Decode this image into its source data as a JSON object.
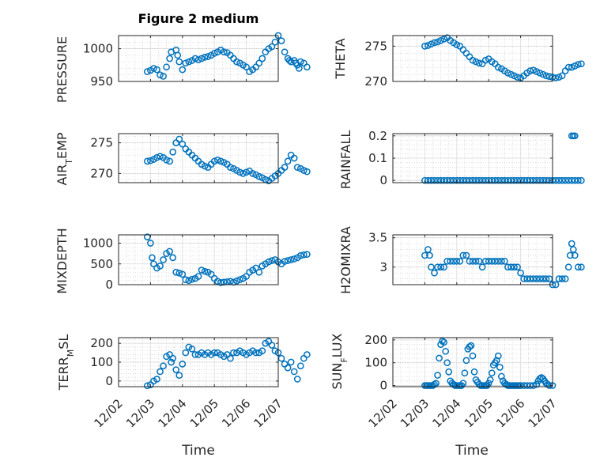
{
  "chart_data": [
    {
      "type": "scatter",
      "title": "Figure 2 medium",
      "ylabel": "PRESSURE",
      "ylim": [
        950,
        1020
      ],
      "yticks": [
        950,
        1000
      ],
      "yticklabels": [
        "950",
        "1000"
      ],
      "grid": true,
      "x": [
        0.9,
        1.0,
        1.1,
        1.2,
        1.3,
        1.4,
        1.5,
        1.6,
        1.65,
        1.8,
        1.85,
        1.9,
        2.0,
        2.1,
        2.2,
        2.3,
        2.4,
        2.5,
        2.6,
        2.7,
        2.8,
        2.9,
        3.0,
        3.1,
        3.2,
        3.3,
        3.4,
        3.5,
        3.6,
        3.7,
        3.8,
        3.9,
        4.0,
        4.1,
        4.2,
        4.3,
        4.4,
        4.5,
        4.6,
        4.7,
        4.8,
        4.9,
        5.0,
        5.1,
        5.2,
        5.3,
        5.35,
        5.4,
        5.5,
        5.55,
        5.6,
        5.65,
        5.7,
        5.8,
        5.9
      ],
      "values": [
        965,
        967,
        970,
        968,
        960,
        958,
        972,
        985,
        995,
        998,
        990,
        980,
        968,
        978,
        980,
        982,
        985,
        983,
        985,
        987,
        988,
        990,
        993,
        995,
        998,
        995,
        994,
        990,
        985,
        980,
        978,
        975,
        972,
        965,
        968,
        972,
        978,
        985,
        995,
        1000,
        1003,
        1010,
        1020,
        1012,
        995,
        985,
        982,
        980,
        982,
        978,
        975,
        970,
        980,
        978,
        972
      ]
    },
    {
      "type": "scatter",
      "title": "",
      "ylabel": "THETA",
      "ylim": [
        270,
        276.5
      ],
      "yticks": [
        270,
        275
      ],
      "yticklabels": [
        "270",
        "275"
      ],
      "grid": true,
      "x": [
        1.0,
        1.1,
        1.2,
        1.3,
        1.4,
        1.5,
        1.6,
        1.7,
        1.8,
        1.9,
        2.0,
        2.1,
        2.2,
        2.3,
        2.4,
        2.5,
        2.6,
        2.7,
        2.8,
        2.9,
        3.0,
        3.1,
        3.2,
        3.3,
        3.4,
        3.5,
        3.6,
        3.7,
        3.8,
        3.9,
        4.0,
        4.1,
        4.2,
        4.3,
        4.4,
        4.5,
        4.6,
        4.7,
        4.8,
        4.9,
        5.0,
        5.1,
        5.2,
        5.3,
        5.4,
        5.5,
        5.6,
        5.7,
        5.8,
        5.9
      ],
      "values": [
        275.0,
        275.1,
        275.3,
        275.5,
        275.6,
        275.8,
        276.0,
        276.2,
        275.8,
        275.5,
        275.2,
        275.0,
        274.5,
        274.0,
        273.5,
        273.0,
        272.8,
        272.6,
        272.5,
        273.0,
        273.2,
        272.8,
        272.5,
        272.0,
        271.8,
        271.5,
        271.2,
        271.0,
        270.8,
        270.6,
        270.5,
        270.8,
        271.2,
        271.5,
        271.6,
        271.4,
        271.2,
        271.0,
        270.8,
        270.7,
        270.6,
        270.5,
        270.6,
        270.8,
        271.5,
        272.0,
        272.0,
        272.2,
        272.4,
        272.5
      ]
    },
    {
      "type": "scatter",
      "title": "",
      "ylabel": "AIR_TEMP",
      "ylim": [
        268.5,
        276.5
      ],
      "yticks": [
        270,
        275
      ],
      "yticklabels": [
        "270",
        "275"
      ],
      "grid": true,
      "x": [
        0.9,
        1.0,
        1.1,
        1.2,
        1.3,
        1.4,
        1.5,
        1.6,
        1.7,
        1.8,
        1.9,
        2.0,
        2.1,
        2.2,
        2.3,
        2.4,
        2.5,
        2.6,
        2.7,
        2.8,
        2.9,
        3.0,
        3.1,
        3.2,
        3.3,
        3.4,
        3.5,
        3.6,
        3.7,
        3.8,
        3.9,
        4.0,
        4.1,
        4.2,
        4.3,
        4.4,
        4.5,
        4.6,
        4.7,
        4.8,
        4.9,
        5.0,
        5.1,
        5.2,
        5.3,
        5.4,
        5.5,
        5.6,
        5.7,
        5.8,
        5.9
      ],
      "values": [
        272.0,
        272.1,
        272.3,
        272.6,
        272.8,
        272.6,
        272.2,
        272.0,
        273.5,
        275.0,
        275.6,
        274.8,
        274.0,
        273.5,
        273.0,
        272.5,
        272.0,
        271.5,
        271.2,
        271.0,
        271.5,
        272.0,
        272.2,
        272.0,
        271.8,
        271.5,
        271.0,
        270.8,
        270.5,
        270.2,
        270.0,
        270.2,
        270.4,
        270.0,
        269.8,
        269.5,
        269.3,
        269.0,
        268.8,
        269.2,
        269.6,
        270.0,
        270.5,
        271.0,
        272.0,
        273.0,
        272.5,
        271.0,
        270.8,
        270.5,
        270.3
      ]
    },
    {
      "type": "scatter",
      "title": "",
      "ylabel": "RAINFALL",
      "ylim": [
        -0.01,
        0.21
      ],
      "yticks": [
        0,
        0.1,
        0.2
      ],
      "yticklabels": [
        "0",
        "0.1",
        "0.2"
      ],
      "grid": true,
      "x": [
        1.0,
        1.1,
        1.2,
        1.3,
        1.4,
        1.5,
        1.6,
        1.7,
        1.8,
        1.9,
        2.0,
        2.1,
        2.2,
        2.3,
        2.4,
        2.5,
        2.6,
        2.7,
        2.8,
        2.9,
        3.0,
        3.1,
        3.2,
        3.3,
        3.4,
        3.5,
        3.6,
        3.7,
        3.8,
        3.9,
        4.0,
        4.1,
        4.2,
        4.3,
        4.4,
        4.5,
        4.6,
        4.7,
        4.8,
        4.9,
        5.0,
        5.1,
        5.2,
        5.3,
        5.4,
        5.5,
        5.6,
        5.7,
        5.8,
        5.9,
        5.6,
        5.65,
        5.7
      ],
      "values": [
        0,
        0,
        0,
        0,
        0,
        0,
        0,
        0,
        0,
        0,
        0,
        0,
        0,
        0,
        0,
        0,
        0,
        0,
        0,
        0,
        0,
        0,
        0,
        0,
        0,
        0,
        0,
        0,
        0,
        0,
        0,
        0,
        0,
        0,
        0,
        0,
        0,
        0,
        0,
        0,
        0,
        0,
        0,
        0,
        0,
        0,
        0,
        0,
        0,
        0,
        0.2,
        0.2,
        0.2
      ]
    },
    {
      "type": "scatter",
      "title": "",
      "ylabel": "MIXDEPTH",
      "ylim": [
        0,
        1200
      ],
      "yticks": [
        0,
        500,
        1000
      ],
      "yticklabels": [
        "0",
        "500",
        "1000"
      ],
      "grid": true,
      "x": [
        0.9,
        1.0,
        1.05,
        1.1,
        1.2,
        1.3,
        1.4,
        1.5,
        1.6,
        1.7,
        1.8,
        1.9,
        2.0,
        2.1,
        2.2,
        2.3,
        2.4,
        2.5,
        2.6,
        2.7,
        2.8,
        2.9,
        3.0,
        3.1,
        3.2,
        3.3,
        3.4,
        3.5,
        3.6,
        3.7,
        3.8,
        3.9,
        4.0,
        4.1,
        4.2,
        4.3,
        4.4,
        4.5,
        4.6,
        4.7,
        4.8,
        4.9,
        5.0,
        5.1,
        5.2,
        5.3,
        5.4,
        5.5,
        5.6,
        5.7,
        5.8,
        5.9
      ],
      "values": [
        1150,
        1000,
        650,
        500,
        400,
        450,
        600,
        750,
        800,
        650,
        300,
        280,
        250,
        120,
        100,
        130,
        150,
        200,
        350,
        320,
        300,
        250,
        150,
        80,
        50,
        60,
        70,
        80,
        60,
        90,
        120,
        150,
        200,
        300,
        350,
        400,
        300,
        450,
        500,
        550,
        580,
        600,
        550,
        500,
        560,
        580,
        600,
        620,
        650,
        700,
        720,
        730
      ]
    },
    {
      "type": "scatter",
      "title": "",
      "ylabel": "H2OMIXRA",
      "ylim": [
        2.7,
        3.55
      ],
      "yticks": [
        3,
        3.5
      ],
      "yticklabels": [
        "3",
        "3.5"
      ],
      "grid": true,
      "x": [
        1.0,
        1.1,
        1.15,
        1.2,
        1.3,
        1.4,
        1.5,
        1.6,
        1.7,
        1.8,
        1.9,
        2.0,
        2.1,
        2.2,
        2.3,
        2.4,
        2.5,
        2.6,
        2.7,
        2.8,
        2.9,
        3.0,
        3.1,
        3.2,
        3.3,
        3.4,
        3.5,
        3.6,
        3.7,
        3.8,
        3.9,
        4.0,
        4.1,
        4.2,
        4.3,
        4.4,
        4.5,
        4.6,
        4.7,
        4.8,
        4.9,
        5.0,
        5.1,
        5.2,
        5.3,
        5.4,
        5.5,
        5.55,
        5.6,
        5.65,
        5.7,
        5.8,
        5.9
      ],
      "values": [
        3.2,
        3.3,
        3.2,
        3.0,
        2.9,
        3.0,
        3.0,
        3.0,
        3.1,
        3.1,
        3.1,
        3.1,
        3.1,
        3.2,
        3.2,
        3.1,
        3.1,
        3.1,
        3.1,
        3.0,
        3.1,
        3.1,
        3.1,
        3.1,
        3.1,
        3.1,
        3.1,
        3.0,
        3.0,
        3.0,
        3.0,
        2.9,
        2.8,
        2.8,
        2.8,
        2.8,
        2.8,
        2.8,
        2.8,
        2.8,
        2.8,
        2.7,
        2.7,
        2.8,
        2.8,
        2.8,
        3.0,
        3.2,
        3.4,
        3.3,
        3.2,
        3.0,
        3.0
      ]
    },
    {
      "type": "scatter",
      "title": "",
      "ylabel": "TERR_MSL",
      "ylim": [
        -30,
        230
      ],
      "yticks": [
        0,
        100,
        200
      ],
      "yticklabels": [
        "0",
        "100",
        "200"
      ],
      "grid": true,
      "xticklabels": [
        "12/02",
        "12/03",
        "12/04",
        "12/05",
        "12/06",
        "12/07"
      ],
      "xlabel": "Time",
      "x": [
        0.9,
        1.0,
        1.1,
        1.2,
        1.3,
        1.4,
        1.5,
        1.6,
        1.65,
        1.7,
        1.8,
        1.9,
        2.0,
        2.1,
        2.2,
        2.3,
        2.4,
        2.5,
        2.6,
        2.7,
        2.8,
        2.9,
        3.0,
        3.1,
        3.2,
        3.3,
        3.4,
        3.5,
        3.6,
        3.7,
        3.8,
        3.9,
        4.0,
        4.1,
        4.2,
        4.3,
        4.4,
        4.5,
        4.6,
        4.7,
        4.8,
        4.9,
        5.0,
        5.1,
        5.2,
        5.3,
        5.4,
        5.5,
        5.6,
        5.7,
        5.8,
        5.9
      ],
      "values": [
        -25,
        -20,
        0,
        10,
        50,
        80,
        130,
        140,
        100,
        120,
        60,
        30,
        90,
        150,
        180,
        170,
        140,
        140,
        150,
        140,
        150,
        140,
        150,
        150,
        140,
        130,
        140,
        120,
        150,
        150,
        160,
        150,
        140,
        150,
        160,
        150,
        150,
        160,
        200,
        210,
        190,
        160,
        150,
        120,
        90,
        70,
        100,
        50,
        10,
        80,
        120,
        140
      ]
    },
    {
      "type": "scatter",
      "title": "",
      "ylabel": "SUN_FLUX",
      "ylim": [
        -5,
        210
      ],
      "yticks": [
        0,
        100,
        200
      ],
      "yticklabels": [
        "0",
        "100",
        "200"
      ],
      "grid": true,
      "xticklabels": [
        "12/02",
        "12/03",
        "12/04",
        "12/05",
        "12/06",
        "12/07"
      ],
      "xlabel": "Time",
      "x": [
        1.0,
        1.05,
        1.1,
        1.15,
        1.2,
        1.25,
        1.3,
        1.35,
        1.4,
        1.45,
        1.5,
        1.55,
        1.6,
        1.65,
        1.7,
        1.75,
        1.8,
        1.85,
        1.9,
        1.95,
        2.0,
        2.05,
        2.1,
        2.15,
        2.2,
        2.25,
        2.3,
        2.35,
        2.4,
        2.45,
        2.5,
        2.55,
        2.6,
        2.65,
        2.7,
        2.75,
        2.8,
        2.85,
        2.9,
        2.95,
        3.0,
        3.05,
        3.1,
        3.15,
        3.2,
        3.25,
        3.3,
        3.35,
        3.4,
        3.45,
        3.5,
        3.55,
        3.6,
        3.65,
        3.7,
        3.75,
        3.8,
        3.85,
        3.9,
        3.95,
        4.0,
        4.1,
        4.2,
        4.3,
        4.4,
        4.5,
        4.55,
        4.6,
        4.65,
        4.7,
        4.75,
        4.8,
        4.85,
        4.9,
        5.0
      ],
      "values": [
        0,
        0,
        0,
        0,
        0,
        0,
        5,
        10,
        45,
        120,
        180,
        195,
        190,
        150,
        100,
        60,
        20,
        10,
        5,
        0,
        0,
        0,
        0,
        0,
        10,
        55,
        110,
        160,
        170,
        175,
        130,
        60,
        25,
        15,
        5,
        0,
        0,
        0,
        0,
        0,
        10,
        25,
        55,
        90,
        100,
        110,
        130,
        80,
        40,
        20,
        10,
        5,
        0,
        0,
        0,
        0,
        0,
        0,
        0,
        0,
        0,
        0,
        0,
        0,
        0,
        5,
        20,
        30,
        35,
        30,
        20,
        10,
        5,
        0,
        0
      ]
    }
  ]
}
